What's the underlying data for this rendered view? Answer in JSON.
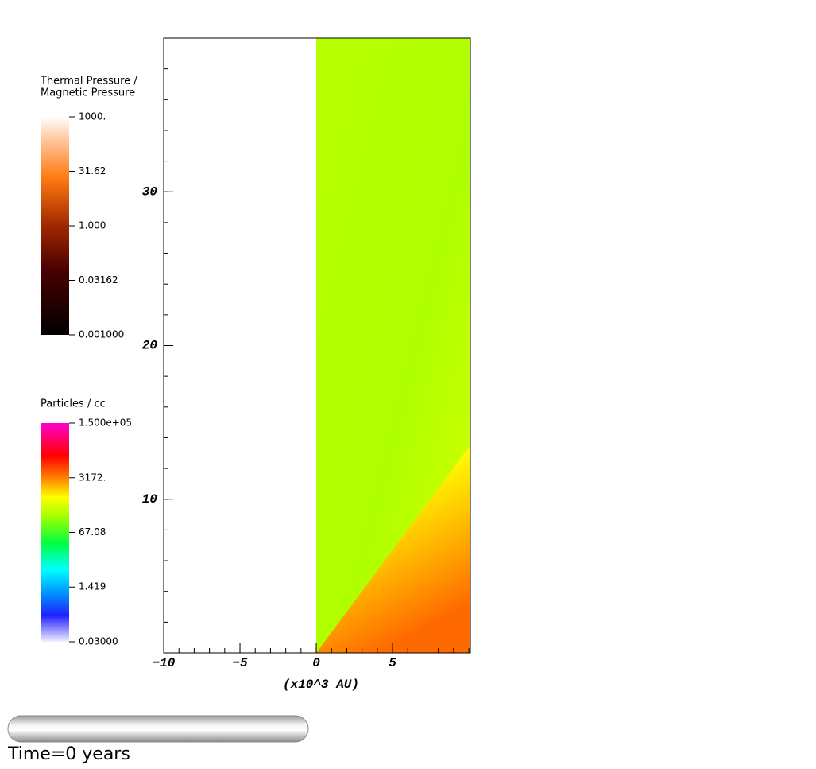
{
  "plot": {
    "xlabel": "(x10^3 AU)",
    "xlim": [
      -10,
      10.1
    ],
    "ylim": [
      0,
      40
    ],
    "xticks": [
      {
        "value": -10,
        "label": "−10"
      },
      {
        "value": -5,
        "label": "−5"
      },
      0,
      5
    ],
    "yticks": [
      10,
      20,
      30
    ]
  },
  "colorbars": [
    {
      "title": [
        "Thermal Pressure /",
        "Magnetic Pressure"
      ],
      "ticks": [
        {
          "value": 1000,
          "label": "1000."
        },
        31.62,
        {
          "value": 1,
          "label": "1.000"
        },
        0.03162,
        {
          "value": 0.001,
          "label": "0.001000"
        }
      ]
    },
    {
      "title": [
        "Particles / cc"
      ],
      "ticks": [
        {
          "value": 150000,
          "label": "1.500e+05"
        },
        {
          "value": 3172,
          "label": "3172."
        },
        67.08,
        1.419,
        {
          "value": 0.03,
          "label": "0.03000"
        }
      ]
    }
  ],
  "time_label": "Time=0 years"
}
